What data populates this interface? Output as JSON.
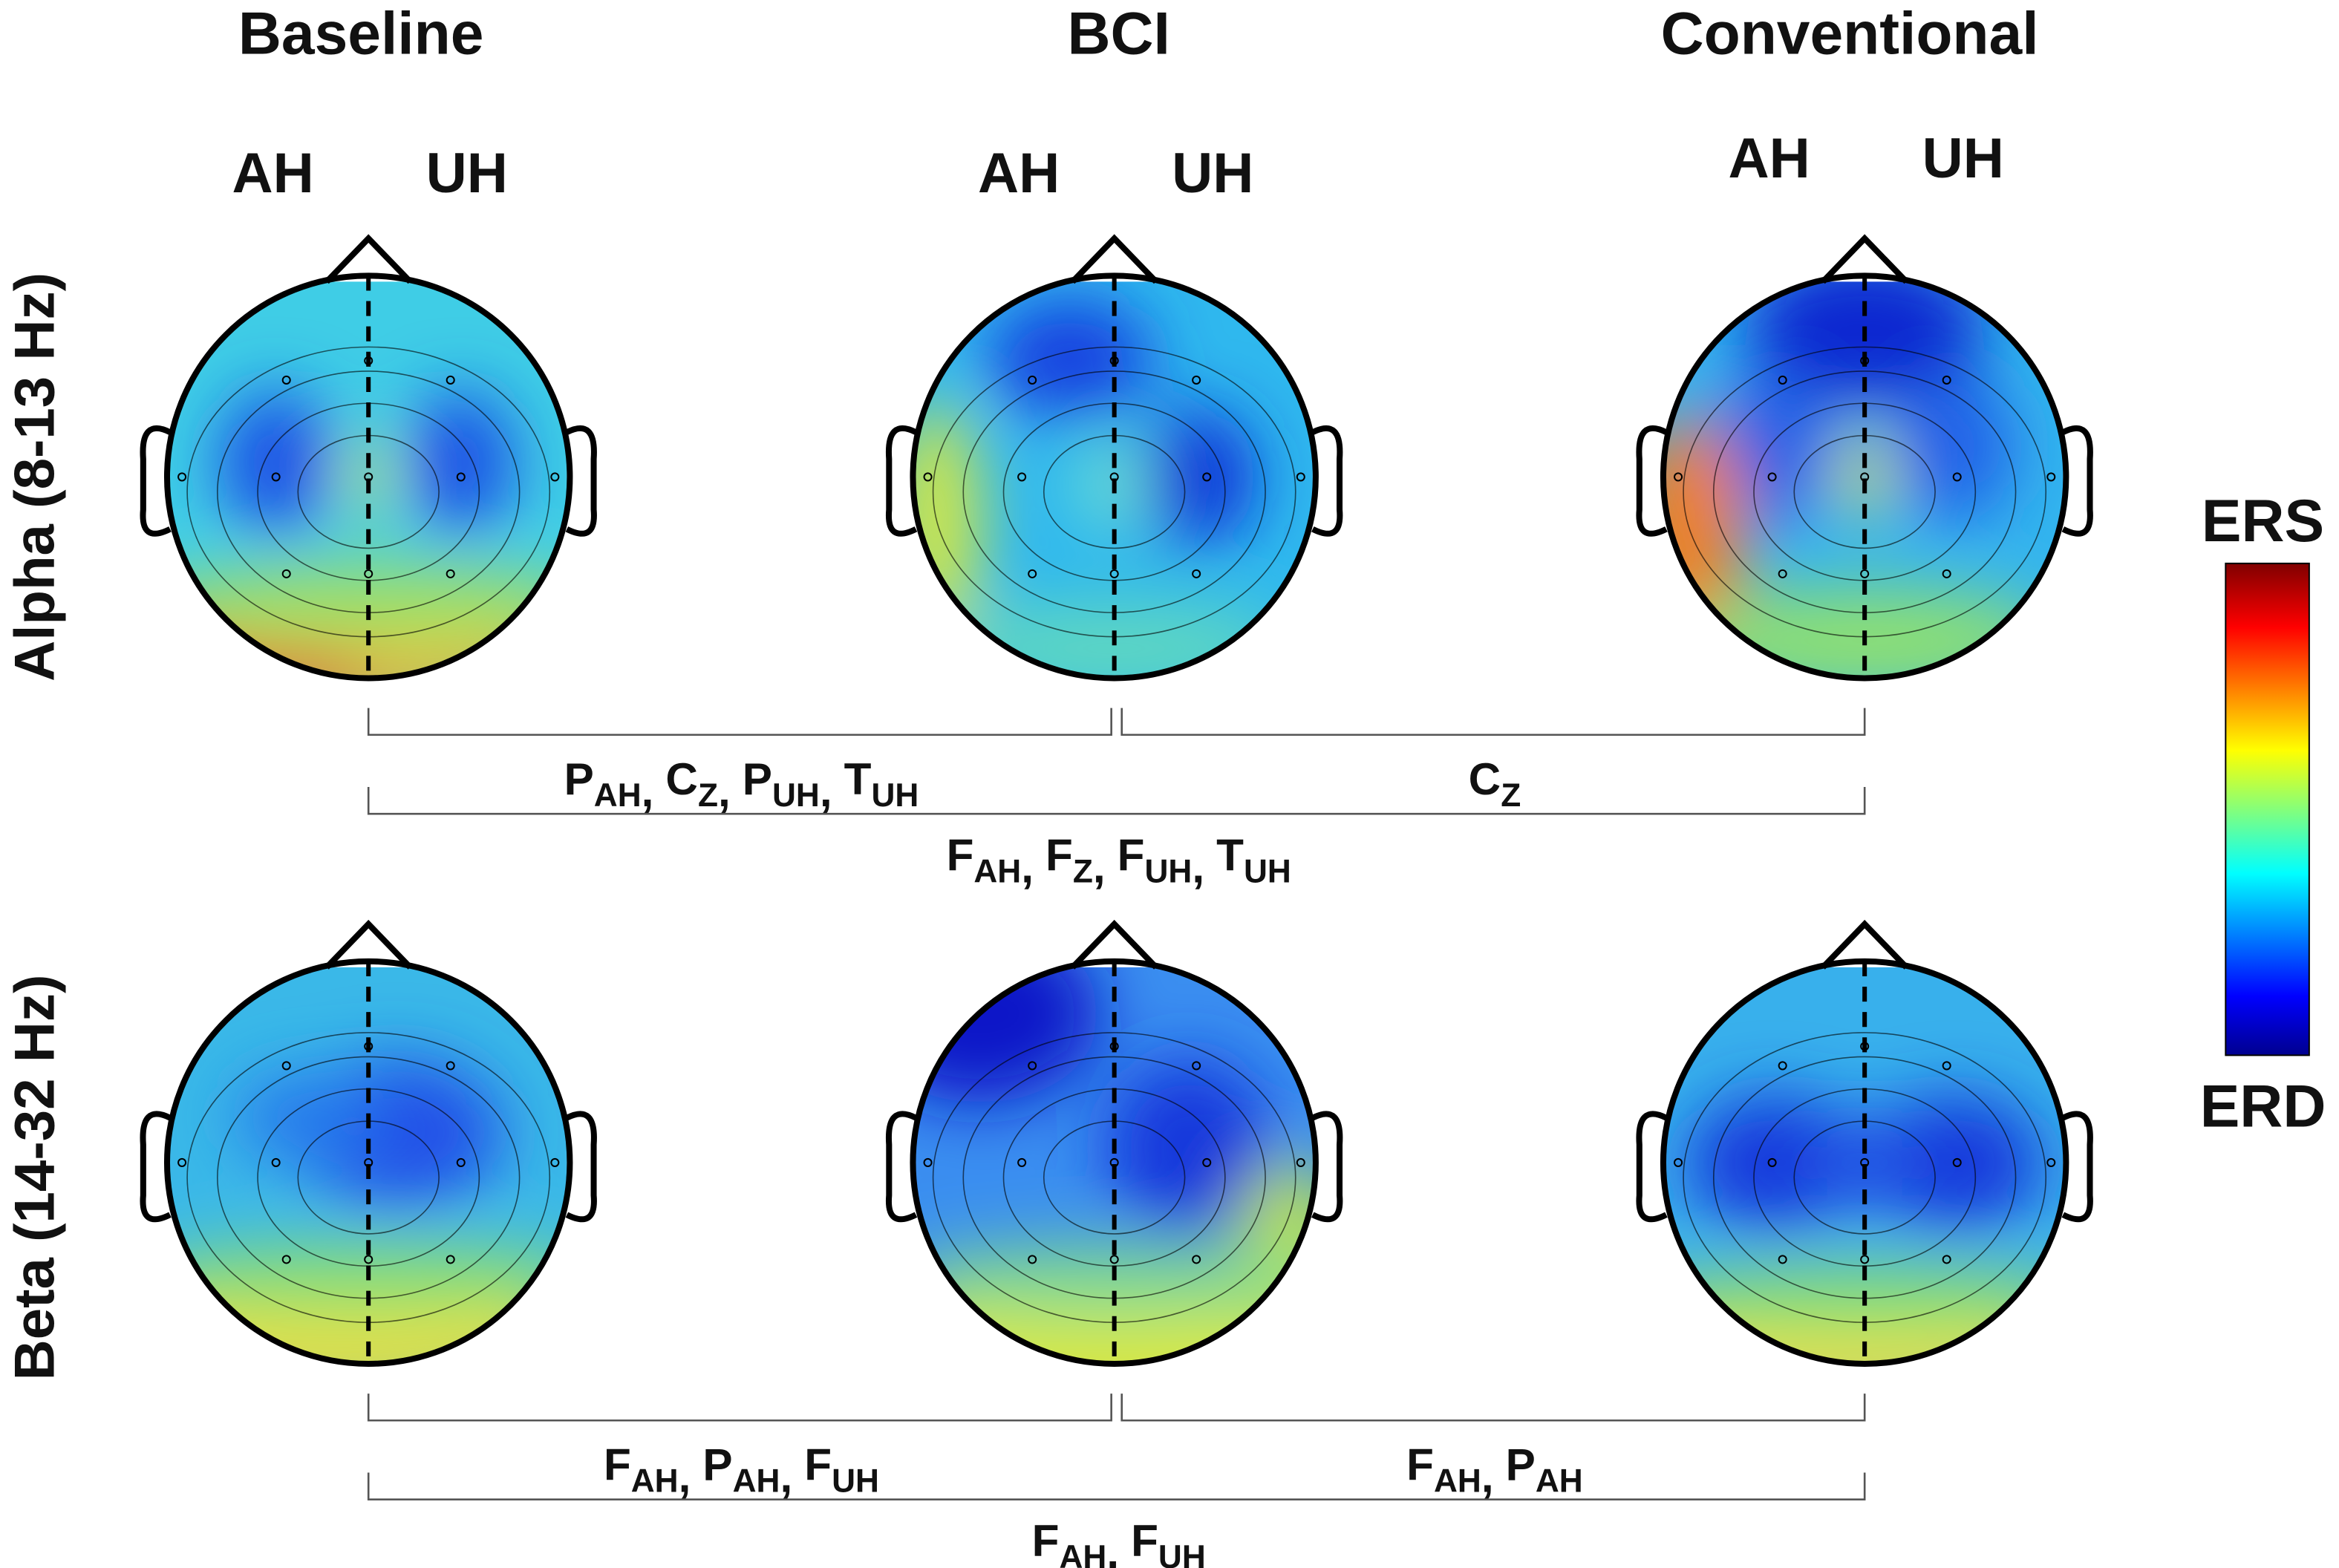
{
  "columns": [
    {
      "title": "Baseline",
      "hemispheres": [
        "AH",
        "UH"
      ]
    },
    {
      "title": "BCI",
      "hemispheres": [
        "AH",
        "UH"
      ]
    },
    {
      "title": "Conventional",
      "hemispheres": [
        "AH",
        "UH"
      ]
    }
  ],
  "rows": [
    {
      "label": "Alpha (8-13 Hz)",
      "comparisons": [
        {
          "channels": [
            {
              "name": "P",
              "sub": "AH"
            },
            {
              "name": "C",
              "sub": "Z"
            },
            {
              "name": "P",
              "sub": "UH"
            },
            {
              "name": "T",
              "sub": "UH"
            }
          ]
        },
        {
          "channels": [
            {
              "name": "C",
              "sub": "Z"
            }
          ]
        },
        {
          "channels": [
            {
              "name": "F",
              "sub": "AH"
            },
            {
              "name": "F",
              "sub": "Z"
            },
            {
              "name": "F",
              "sub": "UH"
            },
            {
              "name": "T",
              "sub": "UH"
            }
          ]
        }
      ]
    },
    {
      "label": "Beta (14-32 Hz)",
      "comparisons": [
        {
          "channels": [
            {
              "name": "F",
              "sub": "AH"
            },
            {
              "name": "P",
              "sub": "AH"
            },
            {
              "name": "F",
              "sub": "UH"
            }
          ]
        },
        {
          "channels": [
            {
              "name": "F",
              "sub": "AH"
            },
            {
              "name": "P",
              "sub": "AH"
            }
          ]
        },
        {
          "channels": [
            {
              "name": "F",
              "sub": "AH"
            },
            {
              "name": "F",
              "sub": "UH"
            }
          ]
        }
      ]
    }
  ],
  "separator": ",",
  "colorbar": {
    "top": "ERS",
    "bottom": "ERD"
  }
}
